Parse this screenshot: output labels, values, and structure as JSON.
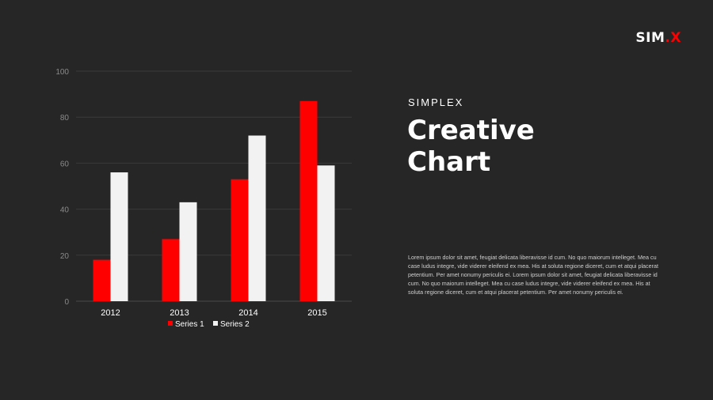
{
  "brand": {
    "logo_main": "SIM",
    "logo_accent": "X"
  },
  "heading": {
    "kicker": "SIMPLEX",
    "title_line1": "Creative",
    "title_line2": "Chart"
  },
  "description": "Lorem ipsum dolor sit amet, feugiat delicata liberavisse id cum. No quo maiorum intelleget. Mea cu case ludus integre, vide viderer eleifend ex mea. His at soluta regione diceret, cum et atqui placerat petentium. Per amet nonumy periculis ei. Lorem ipsum dolor sit amet, feugiat delicata liberavisse id cum. No quo maiorum intelleget. Mea cu case ludus integre, vide viderer eleifend ex mea. His at soluta regione diceret, cum et atqui placerat petentium. Per amet nonumy periculis ei.",
  "colors": {
    "background": "#262626",
    "series1": "#ff0000",
    "series2": "#f2f2f2",
    "accent": "#ff0000"
  },
  "chart_data": {
    "type": "bar",
    "categories": [
      "2012",
      "2013",
      "2014",
      "2015"
    ],
    "series": [
      {
        "name": "Series 1",
        "values": [
          18,
          27,
          53,
          87
        ]
      },
      {
        "name": "Series 2",
        "values": [
          56,
          43,
          72,
          59
        ]
      }
    ],
    "ylim": [
      0,
      100
    ],
    "yticks": [
      "0",
      "20",
      "40",
      "60",
      "80",
      "100"
    ],
    "legend_position": "bottom",
    "grid": true
  }
}
